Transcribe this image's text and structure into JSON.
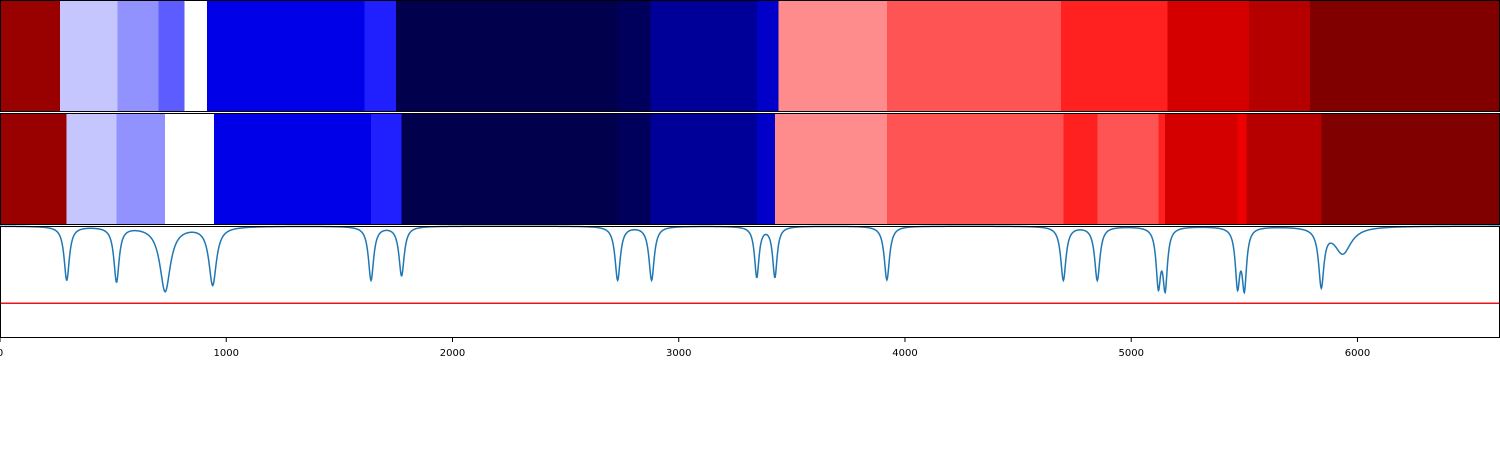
{
  "chart_data": [
    {
      "type": "heatmap",
      "title": "",
      "cmap": "seismic",
      "xlim": [
        0,
        6630
      ],
      "segments": [
        {
          "start": 0,
          "end": 265,
          "color": "#990000"
        },
        {
          "start": 265,
          "end": 520,
          "color": "#c6c6ff"
        },
        {
          "start": 520,
          "end": 700,
          "color": "#9292ff"
        },
        {
          "start": 700,
          "end": 815,
          "color": "#5c5cff"
        },
        {
          "start": 815,
          "end": 915,
          "color": "#ffffff"
        },
        {
          "start": 915,
          "end": 1610,
          "color": "#0000e8"
        },
        {
          "start": 1610,
          "end": 1750,
          "color": "#2020ff"
        },
        {
          "start": 1750,
          "end": 2730,
          "color": "#00004c"
        },
        {
          "start": 2730,
          "end": 2875,
          "color": "#00005c"
        },
        {
          "start": 2875,
          "end": 3345,
          "color": "#000098"
        },
        {
          "start": 3345,
          "end": 3440,
          "color": "#0000c8"
        },
        {
          "start": 3440,
          "end": 3920,
          "color": "#ff8c8c"
        },
        {
          "start": 3920,
          "end": 4690,
          "color": "#ff5454"
        },
        {
          "start": 4690,
          "end": 5160,
          "color": "#ff2020"
        },
        {
          "start": 5160,
          "end": 5520,
          "color": "#d40000"
        },
        {
          "start": 5520,
          "end": 5790,
          "color": "#b60000"
        },
        {
          "start": 5790,
          "end": 6630,
          "color": "#800000"
        }
      ]
    },
    {
      "type": "heatmap",
      "title": "",
      "cmap": "seismic",
      "xlim": [
        0,
        6630
      ],
      "segments": [
        {
          "start": 0,
          "end": 295,
          "color": "#990000"
        },
        {
          "start": 295,
          "end": 515,
          "color": "#c6c6ff"
        },
        {
          "start": 515,
          "end": 730,
          "color": "#9292ff"
        },
        {
          "start": 730,
          "end": 945,
          "color": "#ffffff"
        },
        {
          "start": 945,
          "end": 1640,
          "color": "#0000e8"
        },
        {
          "start": 1640,
          "end": 1775,
          "color": "#2020ff"
        },
        {
          "start": 1775,
          "end": 2730,
          "color": "#00004c"
        },
        {
          "start": 2730,
          "end": 2875,
          "color": "#00005c"
        },
        {
          "start": 2875,
          "end": 3345,
          "color": "#000098"
        },
        {
          "start": 3345,
          "end": 3425,
          "color": "#0000c8"
        },
        {
          "start": 3425,
          "end": 3920,
          "color": "#ff8c8c"
        },
        {
          "start": 3920,
          "end": 4700,
          "color": "#ff5454"
        },
        {
          "start": 4700,
          "end": 4850,
          "color": "#ff2020"
        },
        {
          "start": 4850,
          "end": 5120,
          "color": "#ff5454"
        },
        {
          "start": 5120,
          "end": 5150,
          "color": "#ff2020"
        },
        {
          "start": 5150,
          "end": 5470,
          "color": "#d40000"
        },
        {
          "start": 5470,
          "end": 5510,
          "color": "#ee0000"
        },
        {
          "start": 5510,
          "end": 5840,
          "color": "#b60000"
        },
        {
          "start": 5840,
          "end": 6630,
          "color": "#800000"
        }
      ]
    },
    {
      "type": "line",
      "title": "",
      "xlabel": "",
      "ylabel": "",
      "xlim": [
        0,
        6630
      ],
      "ylim": [
        0,
        1
      ],
      "xticks": [
        0,
        1000,
        2000,
        3000,
        4000,
        5000,
        6000
      ],
      "xtick_labels": [
        "0",
        "1000",
        "2000",
        "3000",
        "4000",
        "5000",
        "6000"
      ],
      "series": [
        {
          "color": "#1f77b4",
          "baseline": 1.0,
          "dips": [
            {
              "x": 295,
              "depth": 0.48,
              "width": 14
            },
            {
              "x": 515,
              "depth": 0.49,
              "width": 14
            },
            {
              "x": 730,
              "depth": 0.58,
              "width": 28
            },
            {
              "x": 940,
              "depth": 0.52,
              "width": 20
            },
            {
              "x": 1640,
              "depth": 0.48,
              "width": 14
            },
            {
              "x": 1775,
              "depth": 0.44,
              "width": 14
            },
            {
              "x": 2730,
              "depth": 0.48,
              "width": 14
            },
            {
              "x": 2880,
              "depth": 0.48,
              "width": 14
            },
            {
              "x": 3345,
              "depth": 0.45,
              "width": 12
            },
            {
              "x": 3425,
              "depth": 0.45,
              "width": 12
            },
            {
              "x": 3920,
              "depth": 0.48,
              "width": 14
            },
            {
              "x": 4700,
              "depth": 0.48,
              "width": 14
            },
            {
              "x": 4850,
              "depth": 0.48,
              "width": 14
            },
            {
              "x": 5120,
              "depth": 0.5,
              "width": 12
            },
            {
              "x": 5150,
              "depth": 0.52,
              "width": 12
            },
            {
              "x": 5470,
              "depth": 0.5,
              "width": 12
            },
            {
              "x": 5500,
              "depth": 0.52,
              "width": 12
            },
            {
              "x": 5840,
              "depth": 0.51,
              "width": 14
            },
            {
              "x": 5935,
              "depth": 0.24,
              "width": 45
            }
          ]
        },
        {
          "color": "#e8141a",
          "constant": 0.31
        }
      ]
    }
  ]
}
